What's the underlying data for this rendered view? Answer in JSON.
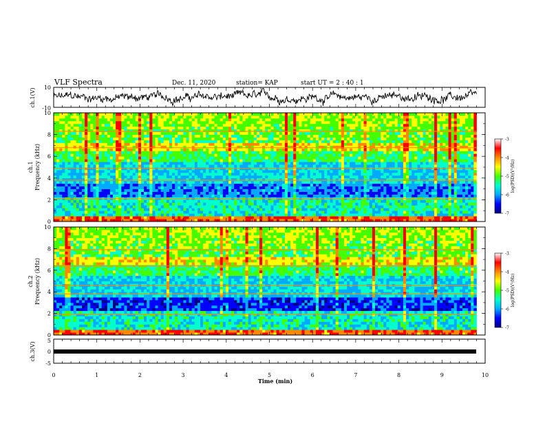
{
  "header": {
    "title": "VLF Spectra",
    "date": "Dec. 11, 2020",
    "station": "station= KAP",
    "start": "start  UT =   2 : 40 : 1"
  },
  "chart_data": [
    {
      "type": "line",
      "name": "ch1-waveform",
      "ylabel": "ch.1(V)",
      "xlim": [
        0,
        10
      ],
      "ylim": [
        -10,
        10
      ],
      "yticks": [
        "10",
        "-10"
      ],
      "x_end": 9.8
    },
    {
      "type": "heatmap",
      "name": "ch1-spectrogram",
      "ylabel_line1": "ch.1",
      "ylabel_line2": "Frequency (kHz)",
      "xlim": [
        0,
        10
      ],
      "ylim": [
        0,
        10
      ],
      "yticks": [
        "0",
        "2",
        "4",
        "6",
        "8",
        "10"
      ],
      "x_end": 9.8,
      "colorbar": {
        "label": "log(PSD)(V²/Hz)",
        "range": [
          -7,
          -3
        ],
        "ticks": [
          "-3",
          "-4",
          "-5",
          "-6",
          "-7"
        ],
        "colors": [
          "#000080",
          "#0000ff",
          "#00aaff",
          "#00ffcc",
          "#44ff00",
          "#ffff00",
          "#ff8800",
          "#ff0000",
          "#ffffff"
        ]
      }
    },
    {
      "type": "heatmap",
      "name": "ch2-spectrogram",
      "ylabel_line1": "ch.2",
      "ylabel_line2": "Frequency (kHz)",
      "xlim": [
        0,
        10
      ],
      "ylim": [
        0,
        10
      ],
      "yticks": [
        "0",
        "2",
        "4",
        "6",
        "8",
        "10"
      ],
      "x_end": 9.8,
      "colorbar": {
        "label": "log(PSD)(V²/Hz)",
        "range": [
          -7,
          -3
        ],
        "ticks": [
          "-3",
          "-4",
          "-5",
          "-6",
          "-7"
        ],
        "colors": [
          "#000080",
          "#0000ff",
          "#00aaff",
          "#00ffcc",
          "#44ff00",
          "#ffff00",
          "#ff8800",
          "#ff0000",
          "#ffffff"
        ]
      }
    },
    {
      "type": "line",
      "name": "ch3-waveform",
      "ylabel": "ch.3(V)",
      "xlim": [
        0,
        10
      ],
      "ylim": [
        -5,
        5
      ],
      "yticks": [
        "5",
        "0",
        "-5"
      ],
      "x_end": 9.8
    }
  ],
  "xaxis": {
    "label": "Time (min)",
    "ticks": [
      "0",
      "1",
      "2",
      "3",
      "4",
      "5",
      "6",
      "7",
      "8",
      "9",
      "10"
    ]
  }
}
